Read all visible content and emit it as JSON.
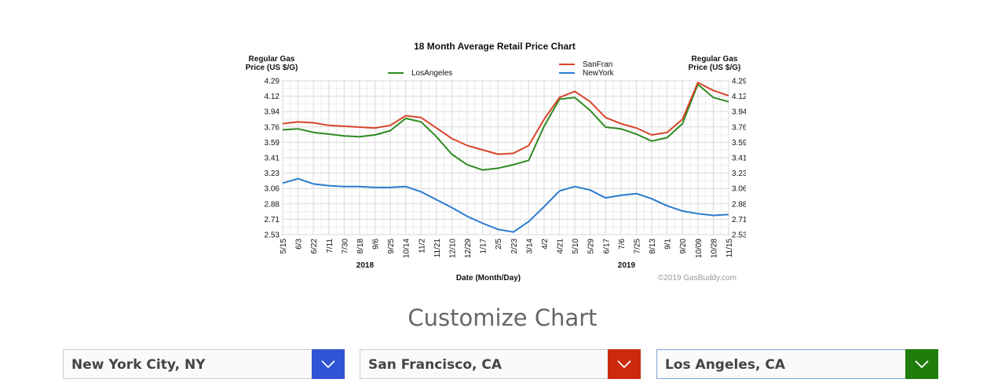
{
  "chart_data": {
    "type": "line",
    "title": "18 Month Average Retail Price Chart",
    "ylabel_left": "Regular Gas\nPrice (US $/G)",
    "ylabel_right": "Regular Gas\nPrice (US $/G)",
    "xlabel": "Date (Month/Day)",
    "y_ticks": [
      "4.29",
      "4.12",
      "3.94",
      "3.76",
      "3.59",
      "3.41",
      "3.23",
      "3.06",
      "2.88",
      "2.71",
      "2.53"
    ],
    "ylim": [
      2.53,
      4.29
    ],
    "x_ticks": [
      "5/15",
      "6/3",
      "6/22",
      "7/11",
      "7/30",
      "8/18",
      "9/6",
      "9/25",
      "10/14",
      "11/2",
      "11/21",
      "12/10",
      "12/29",
      "1/17",
      "2/5",
      "2/23",
      "3/14",
      "4/2",
      "4/21",
      "5/10",
      "5/29",
      "6/17",
      "7/6",
      "7/25",
      "8/13",
      "9/1",
      "9/20",
      "10/09",
      "10/28",
      "11/15"
    ],
    "years": [
      {
        "label": "2018",
        "at_tick": "8/18"
      },
      {
        "label": "2019",
        "at_tick": "7/6"
      }
    ],
    "grid": true,
    "legend_placement": "top",
    "copyright": "©2019 GasBuddy.com",
    "series": [
      {
        "name": "SanFran",
        "color": "#d9442a",
        "values": [
          3.8,
          3.82,
          3.81,
          3.78,
          3.77,
          3.76,
          3.75,
          3.78,
          3.89,
          3.87,
          3.75,
          3.63,
          3.55,
          3.5,
          3.45,
          3.46,
          3.55,
          3.85,
          4.1,
          4.17,
          4.05,
          3.87,
          3.8,
          3.75,
          3.67,
          3.7,
          3.85,
          4.27,
          4.18,
          4.12
        ]
      },
      {
        "name": "LosAngeles",
        "color": "#2e8b22",
        "values": [
          3.73,
          3.74,
          3.7,
          3.68,
          3.66,
          3.65,
          3.67,
          3.72,
          3.86,
          3.82,
          3.65,
          3.45,
          3.33,
          3.27,
          3.29,
          3.33,
          3.38,
          3.77,
          4.08,
          4.1,
          3.95,
          3.76,
          3.74,
          3.68,
          3.6,
          3.64,
          3.8,
          4.25,
          4.1,
          4.05
        ]
      },
      {
        "name": "NewYork",
        "color": "#2b7bd1",
        "values": [
          3.12,
          3.17,
          3.11,
          3.09,
          3.08,
          3.08,
          3.07,
          3.07,
          3.08,
          3.02,
          2.93,
          2.84,
          2.74,
          2.66,
          2.59,
          2.56,
          2.68,
          2.85,
          3.03,
          3.08,
          3.04,
          2.95,
          2.98,
          3.0,
          2.94,
          2.86,
          2.8,
          2.77,
          2.75,
          2.76
        ]
      }
    ]
  },
  "customize": {
    "title": "Customize Chart",
    "selects": [
      {
        "label": "New York City, NY",
        "color": "#2f55d4"
      },
      {
        "label": "San Francisco, CA",
        "color": "#cc2a0f"
      },
      {
        "label": "Los Angeles, CA",
        "color": "#1f7d0b"
      }
    ]
  }
}
